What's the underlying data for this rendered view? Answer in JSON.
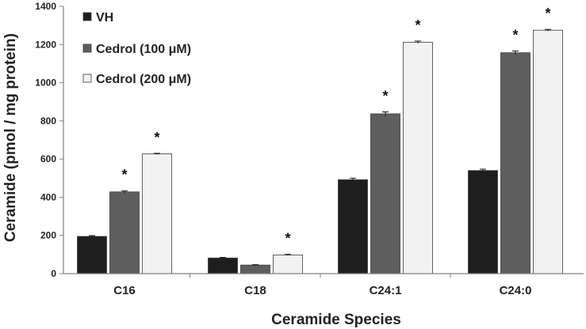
{
  "chart_data": {
    "type": "bar",
    "title": "",
    "xlabel": "Ceramide Species",
    "ylabel": "Ceramide (pmol / mg protein)",
    "ylim": [
      0,
      1400
    ],
    "yticks": [
      0,
      200,
      400,
      600,
      800,
      1000,
      1200,
      1400
    ],
    "categories": [
      "C16",
      "C18",
      "C24:1",
      "C24:0"
    ],
    "legend_position": "top-left",
    "significance_marker": "*",
    "series": [
      {
        "name": "VH",
        "color": "#1e1e1e",
        "values": [
          195,
          82,
          492,
          540
        ],
        "errors": [
          4,
          3,
          8,
          7
        ],
        "significant": [
          false,
          false,
          false,
          false
        ]
      },
      {
        "name": "Cedrol (100 μM)",
        "color": "#5e5e5e",
        "values": [
          428,
          45,
          837,
          1157
        ],
        "errors": [
          6,
          2,
          10,
          9
        ],
        "significant": [
          true,
          false,
          true,
          true
        ]
      },
      {
        "name": "Cedrol (200 μM)",
        "color": "#f2f2f2",
        "values": [
          627,
          98,
          1212,
          1275
        ],
        "errors": [
          3,
          3,
          6,
          4
        ],
        "significant": [
          true,
          true,
          true,
          true
        ]
      }
    ]
  }
}
